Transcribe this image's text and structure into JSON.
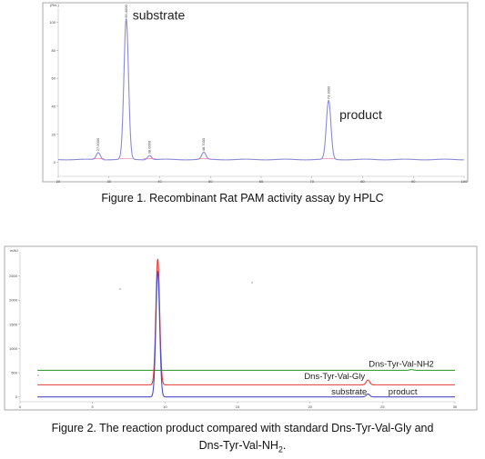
{
  "chart_data": [
    {
      "type": "line",
      "title": "",
      "caption": "Figure 1. Recombinant Rat PAM activity assay by HPLC",
      "xlabel": "",
      "ylabel": "",
      "xlim": [
        20,
        100
      ],
      "ylim": [
        -10,
        110
      ],
      "grid": false,
      "y_ticks": [
        0,
        20,
        40,
        60,
        80,
        100
      ],
      "x_ticks": [
        20,
        30,
        40,
        50,
        60,
        70,
        80,
        90,
        100
      ],
      "series": [
        {
          "color": "#8a8ad6",
          "baseline": 2,
          "peaks": [
            {
              "x": 27.9,
              "height": 5,
              "label": "27.9000"
            },
            {
              "x": 33.4,
              "height": 100,
              "label": "33.4000"
            },
            {
              "x": 38.0,
              "height": 3,
              "label": "38.0000"
            },
            {
              "x": 48.7,
              "height": 5,
              "label": "48.7000"
            },
            {
              "x": 73.3,
              "height": 42,
              "label": "73.3000"
            }
          ]
        }
      ],
      "annotations": [
        {
          "text": "substrate",
          "x": 33.4,
          "y": 100
        },
        {
          "text": "product",
          "x": 73.3,
          "y": 42
        }
      ]
    },
    {
      "type": "line",
      "title": "",
      "caption_line1": "Figure 2. The reaction product compared with standard Dns-Tyr-Val-Gly and",
      "caption_line2_main": "Dns-Tyr-Val-NH",
      "caption_line2_sub": "2",
      "caption_line2_end": ".",
      "ylabel": "mAU",
      "xlim": [
        0,
        30
      ],
      "ylim": [
        -100,
        3000
      ],
      "y_ticks": [
        0,
        500,
        1000,
        1500,
        2000,
        2500
      ],
      "x_ticks": [
        0,
        5,
        10,
        15,
        20,
        25,
        30
      ],
      "series": [
        {
          "name": "substrate",
          "color": "#4b4bc8",
          "offset": 0,
          "main_peak": 2600,
          "small_peak_x": 24.0,
          "small_peak_h": 60
        },
        {
          "name": "Dns-Tyr-Val-Gly",
          "color": "#e03a3a",
          "offset": 250,
          "main_peak": 2850,
          "small_peak_x": 24.0,
          "small_peak_h": 100
        },
        {
          "name": "Dns-Tyr-Val-NH2",
          "color": "#3aa03a",
          "offset": 550,
          "main_peak": 0,
          "small_peak_x": 27.0,
          "small_peak_h": 15
        }
      ],
      "main_peak_x": 9.5,
      "annotations": [
        {
          "text": "Dns-Tyr-Val-NH2",
          "x": 26.3,
          "y": 620
        },
        {
          "text": "Dns-Tyr-Val-Gly",
          "x": 21.7,
          "y": 370
        },
        {
          "text": "substrate",
          "x": 22.7,
          "y": 50
        },
        {
          "text": "product",
          "x": 26.4,
          "y": 50
        }
      ]
    }
  ]
}
